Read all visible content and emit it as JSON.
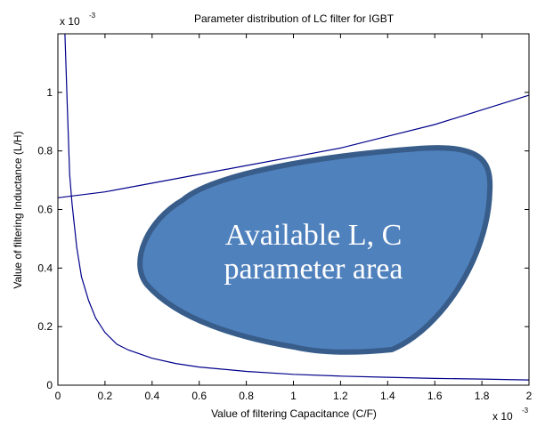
{
  "chart_data": {
    "type": "line",
    "title": "Parameter distribution of LC filter for IGBT",
    "xlabel": "Value of filtering Capacitance (C/F)",
    "ylabel": "Value of filtering Inductance (L/H)",
    "x_multiplier": {
      "base": "x 10",
      "exp": "-3"
    },
    "y_multiplier": {
      "base": "x 10",
      "exp": "-3"
    },
    "xlim": [
      0,
      0.002
    ],
    "ylim": [
      0,
      0.0012
    ],
    "x_ticks": [
      0,
      0.0002,
      0.0004,
      0.0006,
      0.0008,
      0.001,
      0.0012,
      0.0014,
      0.0016,
      0.0018,
      0.002
    ],
    "x_tick_labels": [
      "0",
      "0.2",
      "0.4",
      "0.6",
      "0.8",
      "1",
      "1.2",
      "1.4",
      "1.6",
      "1.8",
      "2"
    ],
    "y_ticks": [
      0,
      0.0002,
      0.0004,
      0.0006,
      0.0008,
      0.001
    ],
    "y_tick_labels": [
      "0",
      "0.2",
      "0.4",
      "0.6",
      "0.8",
      "1"
    ],
    "grid": false,
    "line_color": "#00008b",
    "series": [
      {
        "x": [
          3e-05,
          4e-05,
          5e-05,
          6e-05,
          8e-05,
          0.0001,
          0.00013,
          0.00016,
          0.0002,
          0.00025,
          0.0003,
          0.0004,
          0.0005,
          0.0006,
          0.0008,
          0.001,
          0.0012,
          0.0014,
          0.0016,
          0.0018,
          0.002
        ],
        "y": [
          0.0012,
          0.00095,
          0.00072,
          0.00062,
          0.00047,
          0.00037,
          0.00029,
          0.00023,
          0.00018,
          0.00014,
          0.00012,
          9.2e-05,
          7.4e-05,
          6.2e-05,
          4.7e-05,
          3.7e-05,
          3.1e-05,
          2.7e-05,
          2.3e-05,
          2.1e-05,
          1.8e-05
        ]
      },
      {
        "x": [
          0,
          0.0002,
          0.0004,
          0.0006,
          0.0008,
          0.001,
          0.0012,
          0.0014,
          0.0016,
          0.0018,
          0.002
        ],
        "y": [
          0.00064,
          0.00066,
          0.00069,
          0.00072,
          0.00075,
          0.00078,
          0.00081,
          0.00085,
          0.00089,
          0.00094,
          0.00099
        ]
      }
    ],
    "annotation": {
      "lines": [
        "Available L, C",
        "parameter area"
      ],
      "fill_color": "#4f81bd",
      "stroke_color": "#385d8a"
    }
  }
}
